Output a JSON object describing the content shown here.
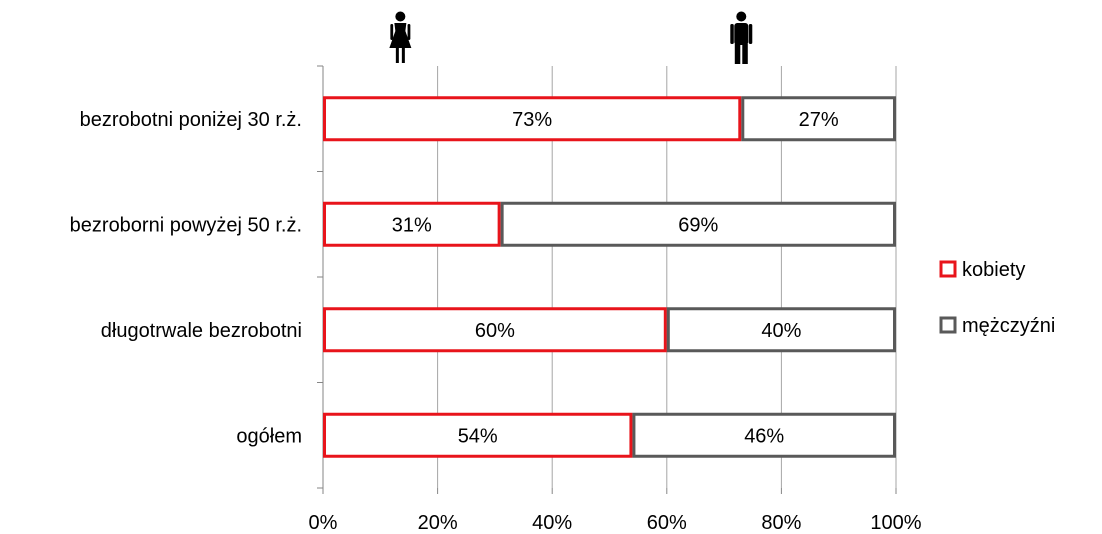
{
  "chart_data": {
    "type": "bar",
    "orientation": "horizontal",
    "stacked": "percent",
    "categories": [
      "bezrobotni poniżej 30 r.ż.",
      "bezroborni powyżej 50 r.ż.",
      "długotrwale bezrobotni",
      "ogółem"
    ],
    "series": [
      {
        "name": "kobiety",
        "values": [
          73,
          31,
          60,
          54
        ],
        "labels": [
          "73%",
          "31%",
          "60%",
          "54%"
        ],
        "color": "#e8141b"
      },
      {
        "name": "mężczyźni",
        "values": [
          27,
          69,
          40,
          46
        ],
        "labels": [
          "27%",
          "69%",
          "40%",
          "46%"
        ],
        "color": "#595959"
      }
    ],
    "x_ticks": [
      "0%",
      "20%",
      "40%",
      "60%",
      "80%",
      "100%"
    ],
    "xlim": [
      0,
      100
    ],
    "grid": true,
    "legend": "right",
    "icons": [
      {
        "name": "woman-icon",
        "at": 13.5
      },
      {
        "name": "man-icon",
        "at": 73
      }
    ],
    "colors": {
      "grid": "#a6a6a6",
      "axis": "#868686",
      "bar_fill": "#ffffff"
    }
  }
}
